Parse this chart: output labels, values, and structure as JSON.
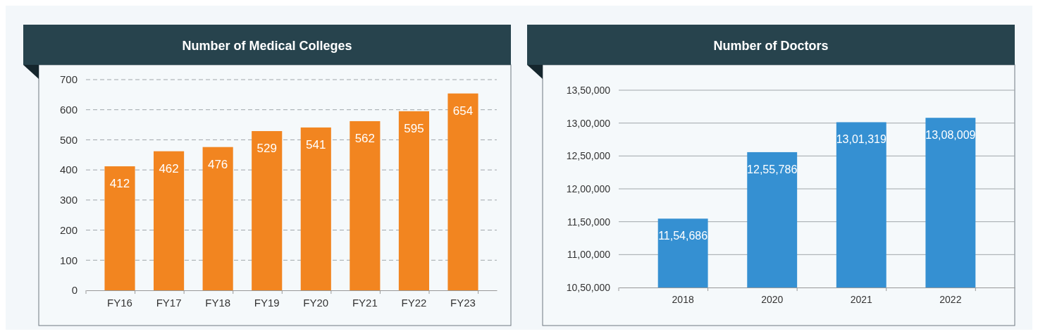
{
  "chart_data": [
    {
      "type": "bar",
      "title": "Number of Medical Colleges",
      "categories": [
        "FY16",
        "FY17",
        "FY18",
        "FY19",
        "FY20",
        "FY21",
        "FY22",
        "FY23"
      ],
      "values": [
        412,
        462,
        476,
        529,
        541,
        562,
        595,
        654
      ],
      "color": "#f28520",
      "ylim": [
        0,
        700
      ],
      "yticks": [
        0,
        100,
        200,
        300,
        400,
        500,
        600,
        700
      ],
      "grid": "y",
      "data_labels": true
    },
    {
      "type": "bar",
      "title": "Number of Doctors",
      "categories": [
        "2018",
        "2020",
        "2021",
        "2022"
      ],
      "values": [
        1154686,
        1255786,
        1301319,
        1308009
      ],
      "value_labels": [
        "11,54,686",
        "12,55,786",
        "13,01,319",
        "13,08,009"
      ],
      "color": "#3590d2",
      "ylim": [
        1050000,
        1350000
      ],
      "yticks": [
        {
          "value": 1050000,
          "label": "10,50,000"
        },
        {
          "value": 1100000,
          "label": "11,00,000"
        },
        {
          "value": 1150000,
          "label": "11,50,000"
        },
        {
          "value": 1200000,
          "label": "12,00,000"
        },
        {
          "value": 1250000,
          "label": "12,50,000"
        },
        {
          "value": 1300000,
          "label": "13,00,000"
        },
        {
          "value": 1350000,
          "label": "13,50,000"
        }
      ],
      "grid": "y"
    }
  ]
}
